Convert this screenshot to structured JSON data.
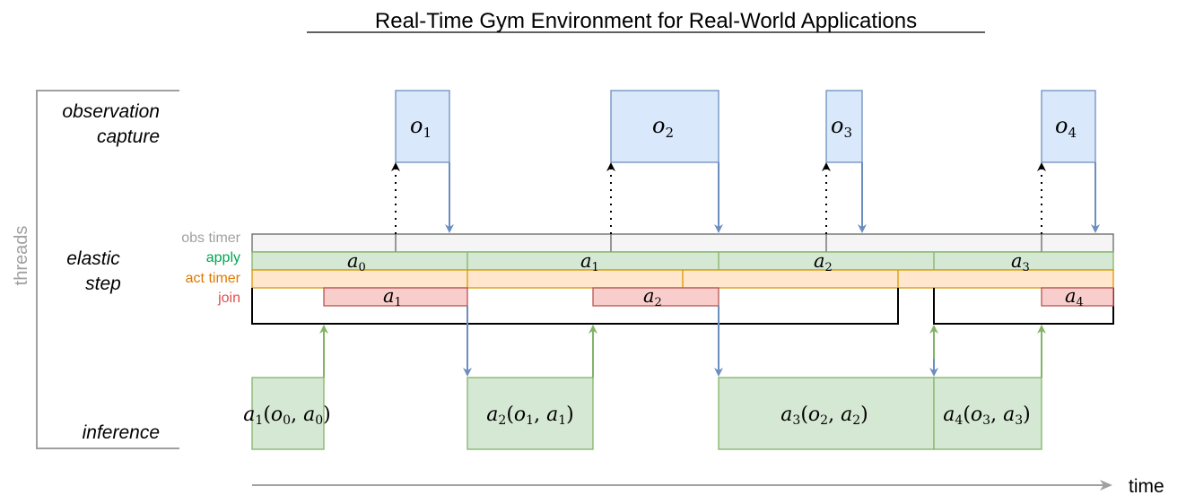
{
  "title": "Real-Time Gym Environment for Real-World Applications",
  "axis": {
    "threads_label": "threads",
    "time_label": "time"
  },
  "lanes": {
    "observation_line1": "observation",
    "observation_line2": "capture",
    "elastic_line1": "elastic",
    "elastic_line2": "step",
    "inference": "inference"
  },
  "sub_lanes": {
    "obs_timer": "obs timer",
    "apply": "apply",
    "act_timer": "act timer",
    "join": "join"
  },
  "observations": [
    {
      "sym": "o",
      "sub": "1"
    },
    {
      "sym": "o",
      "sub": "2"
    },
    {
      "sym": "o",
      "sub": "3"
    },
    {
      "sym": "o",
      "sub": "4"
    }
  ],
  "apply_actions": [
    {
      "sym": "a",
      "sub": "0"
    },
    {
      "sym": "a",
      "sub": "1"
    },
    {
      "sym": "a",
      "sub": "2"
    },
    {
      "sym": "a",
      "sub": "3"
    }
  ],
  "join_actions": [
    {
      "sym": "a",
      "sub": "1"
    },
    {
      "sym": "a",
      "sub": "2"
    },
    {
      "sym": "a",
      "sub": "4"
    }
  ],
  "inference_boxes": [
    {
      "out": "a",
      "out_sub": "1",
      "obs": "o",
      "obs_sub": "0",
      "act": "a",
      "act_sub": "0"
    },
    {
      "out": "a",
      "out_sub": "2",
      "obs": "o",
      "obs_sub": "1",
      "act": "a",
      "act_sub": "1"
    },
    {
      "out": "a",
      "out_sub": "3",
      "obs": "o",
      "obs_sub": "2",
      "act": "a",
      "act_sub": "2"
    },
    {
      "out": "a",
      "out_sub": "4",
      "obs": "o",
      "obs_sub": "3",
      "act": "a",
      "act_sub": "3"
    }
  ],
  "colors": {
    "obs_fill": "#dae8fc",
    "obs_stroke": "#6c8ebf",
    "apply_fill": "#d5e8d4",
    "apply_stroke": "#82b366",
    "apply_label": "#00a650",
    "timer_fill": "#ffe6cc",
    "timer_stroke": "#d79b00",
    "timer_label": "#e07800",
    "join_fill": "#f8cecc",
    "join_stroke": "#b85450",
    "join_label": "#e05050",
    "obs_timer_fill": "#f5f5f5",
    "obs_timer_stroke": "#666666",
    "obs_timer_label": "#a0a0a0",
    "axis_gray": "#a0a0a0",
    "arrow_blue": "#6c8ebf",
    "arrow_green": "#82b366"
  }
}
